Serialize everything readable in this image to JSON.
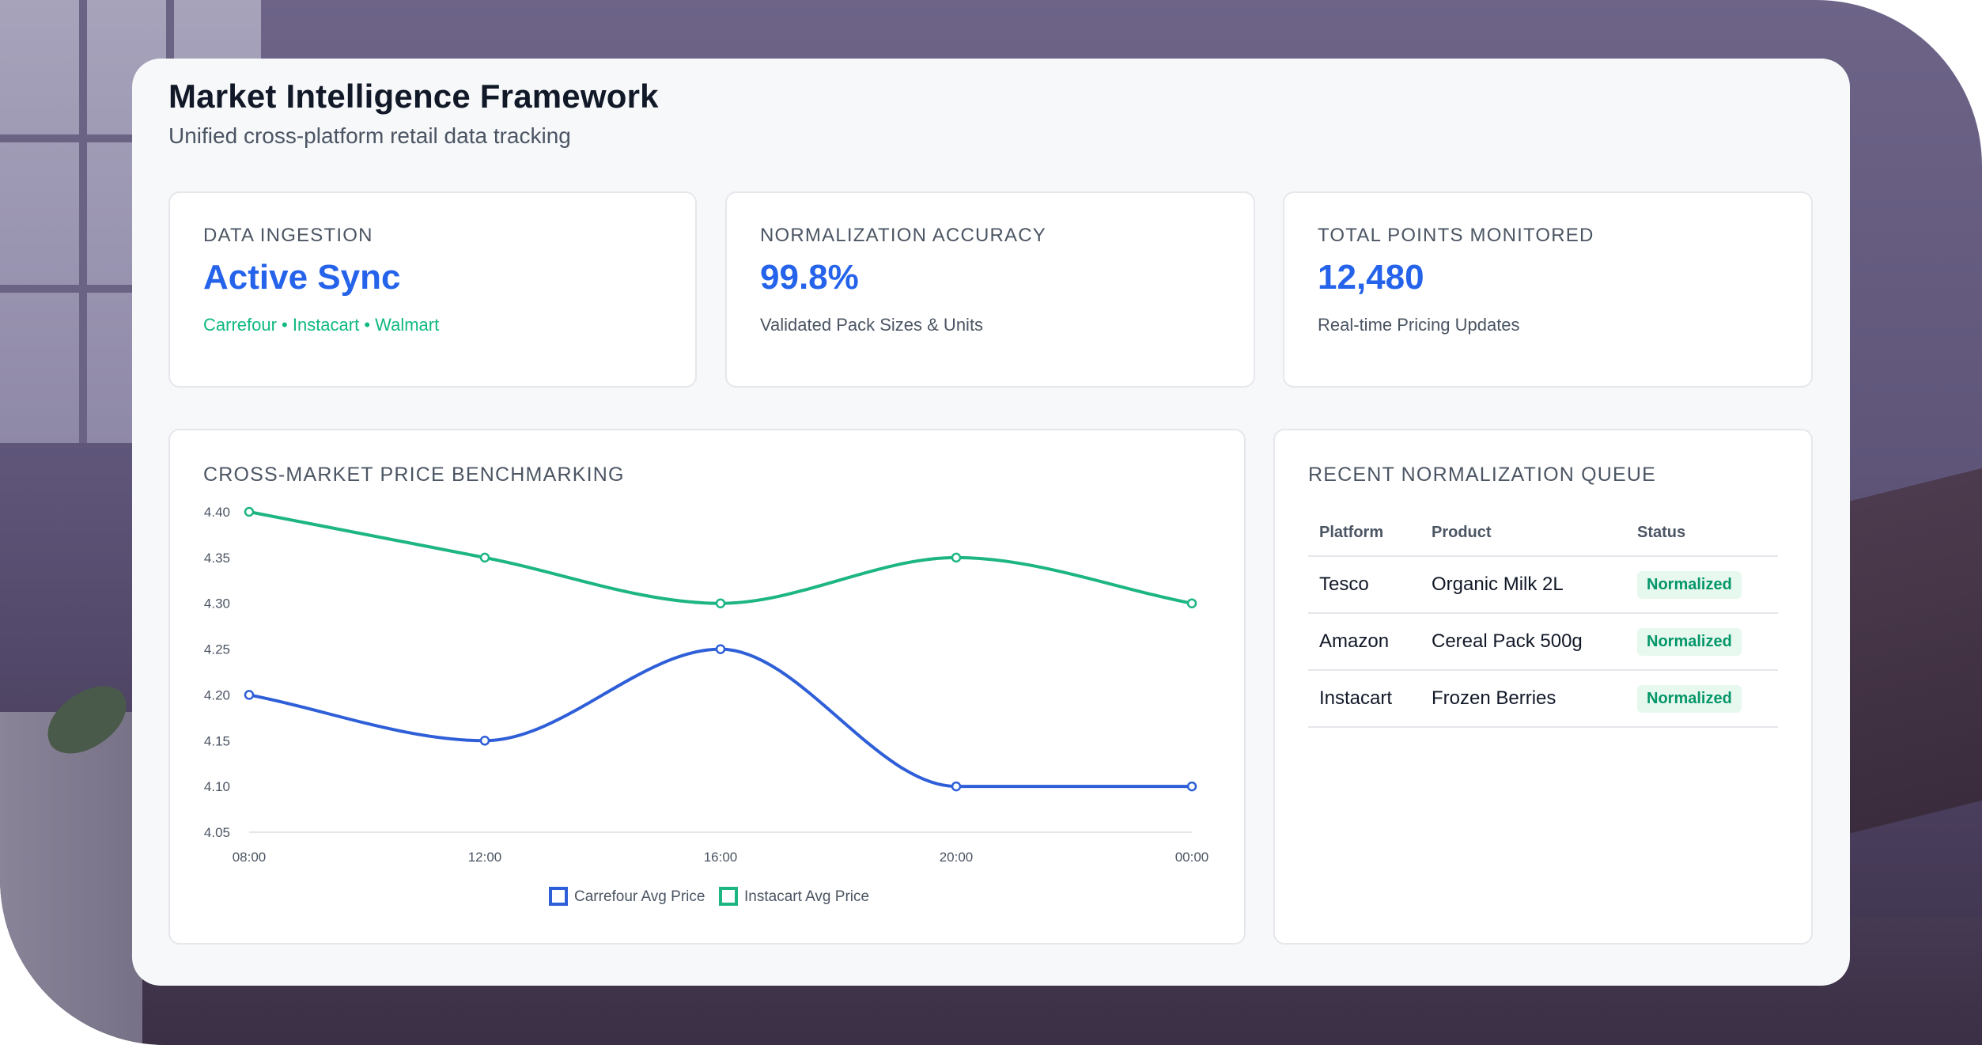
{
  "header": {
    "title": "Market Intelligence Framework",
    "subtitle": "Unified cross-platform retail data tracking"
  },
  "stats": [
    {
      "label": "DATA INGESTION",
      "value": "Active Sync",
      "sub": "Carrefour • Instacart • Walmart"
    },
    {
      "label": "NORMALIZATION ACCURACY",
      "value": "99.8%",
      "sub": "Validated Pack Sizes & Units"
    },
    {
      "label": "TOTAL POINTS MONITORED",
      "value": "12,480",
      "sub": "Real-time Pricing Updates"
    }
  ],
  "colors": {
    "accent_blue": "#2563eb",
    "accent_green": "#10b981",
    "badge_bg": "#e7f8ef"
  },
  "chart_data": {
    "type": "line",
    "title": "CROSS-MARKET PRICE BENCHMARKING",
    "categories": [
      "08:00",
      "12:00",
      "16:00",
      "20:00",
      "00:00"
    ],
    "yticks": [
      "4.05",
      "4.10",
      "4.15",
      "4.20",
      "4.25",
      "4.30",
      "4.35",
      "4.40"
    ],
    "ylim": [
      4.05,
      4.4
    ],
    "grid": false,
    "legend_position": "bottom-center",
    "series": [
      {
        "name": "Carrefour Avg Price",
        "color": "#2f5fd8",
        "values": [
          4.2,
          4.15,
          4.25,
          4.1,
          4.1
        ]
      },
      {
        "name": "Instacart Avg Price",
        "color": "#1db584",
        "values": [
          4.4,
          4.35,
          4.3,
          4.35,
          4.3
        ]
      }
    ]
  },
  "queue": {
    "title": "RECENT NORMALIZATION QUEUE",
    "columns": [
      "Platform",
      "Product",
      "Status"
    ],
    "rows": [
      {
        "platform": "Tesco",
        "product": "Organic Milk 2L",
        "status": "Normalized"
      },
      {
        "platform": "Amazon",
        "product": "Cereal Pack 500g",
        "status": "Normalized"
      },
      {
        "platform": "Instacart",
        "product": "Frozen Berries",
        "status": "Normalized"
      }
    ]
  }
}
